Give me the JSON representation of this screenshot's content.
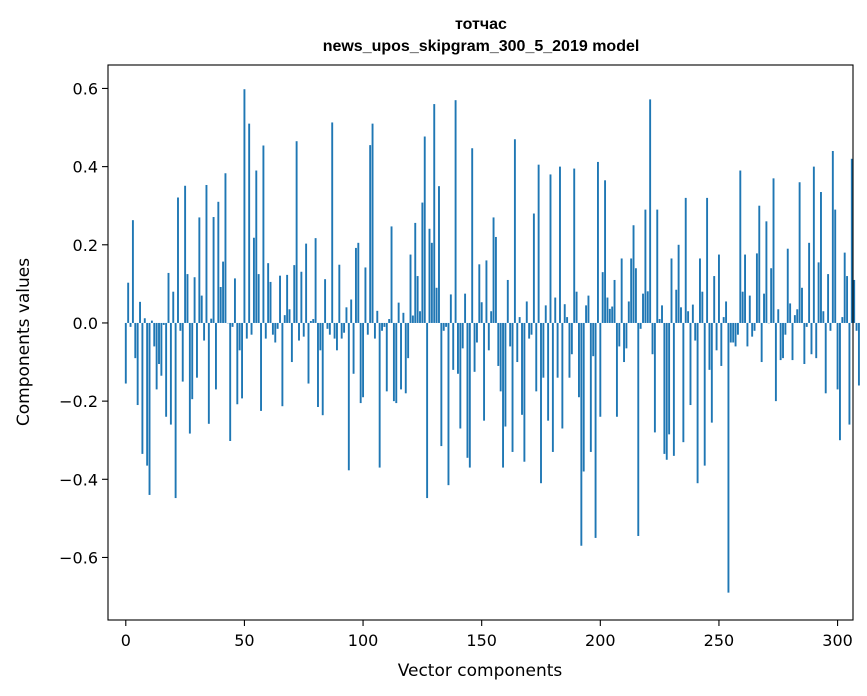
{
  "chart_data": {
    "type": "bar",
    "title_line1": "тотчас",
    "title_line2": "news_upos_skipgram_300_5_2019 model",
    "xlabel": "Vector components",
    "ylabel": "Components values",
    "xlim": [
      -7.5,
      306.5
    ],
    "ylim": [
      -0.76,
      0.66
    ],
    "xticks": [
      0,
      50,
      100,
      150,
      200,
      250,
      300
    ],
    "xtick_labels": [
      "0",
      "50",
      "100",
      "150",
      "200",
      "250",
      "300"
    ],
    "yticks": [
      0.6,
      0.4,
      0.2,
      0.0,
      -0.2,
      -0.4,
      -0.6
    ],
    "ytick_labels": [
      "0.6",
      "0.4",
      "0.2",
      "0.0",
      "−0.2",
      "−0.4",
      "−0.6"
    ],
    "bar_color": "#1f77b4",
    "values": [
      -0.155,
      0.103,
      -0.01,
      0.263,
      -0.09,
      -0.21,
      0.054,
      -0.335,
      0.012,
      -0.365,
      -0.44,
      0.006,
      -0.06,
      -0.17,
      -0.105,
      -0.135,
      -0.005,
      -0.24,
      0.128,
      -0.26,
      0.08,
      -0.448,
      0.321,
      -0.02,
      -0.15,
      0.351,
      0.125,
      -0.283,
      -0.195,
      0.117,
      -0.14,
      0.27,
      0.07,
      -0.045,
      0.353,
      -0.258,
      0.011,
      0.271,
      -0.17,
      0.31,
      0.092,
      0.157,
      0.383,
      0.0,
      -0.302,
      -0.01,
      0.114,
      -0.208,
      -0.07,
      -0.193,
      0.598,
      -0.04,
      0.51,
      -0.03,
      0.218,
      0.39,
      0.125,
      -0.225,
      0.454,
      -0.04,
      0.153,
      0.105,
      -0.03,
      -0.05,
      -0.015,
      0.121,
      -0.213,
      0.02,
      0.123,
      0.035,
      -0.1,
      0.148,
      0.465,
      -0.045,
      0.131,
      -0.035,
      0.203,
      -0.155,
      0.005,
      0.01,
      0.217,
      -0.215,
      -0.07,
      -0.236,
      0.112,
      -0.015,
      -0.03,
      0.513,
      -0.04,
      -0.07,
      0.149,
      -0.04,
      -0.025,
      0.04,
      -0.377,
      0.06,
      -0.13,
      0.192,
      0.205,
      -0.205,
      -0.19,
      0.142,
      -0.03,
      0.455,
      0.51,
      -0.04,
      0.031,
      -0.37,
      -0.02,
      -0.01,
      -0.175,
      0.01,
      0.247,
      -0.2,
      -0.205,
      0.052,
      -0.17,
      0.026,
      -0.18,
      -0.09,
      0.175,
      0.019,
      0.256,
      0.12,
      0.03,
      0.308,
      0.477,
      -0.448,
      0.241,
      0.205,
      0.56,
      0.09,
      0.35,
      -0.315,
      -0.02,
      -0.01,
      -0.415,
      0.073,
      -0.12,
      0.57,
      -0.13,
      -0.27,
      -0.065,
      0.075,
      -0.345,
      -0.37,
      0.447,
      -0.125,
      -0.05,
      0.15,
      0.053,
      -0.25,
      0.16,
      -0.07,
      0.03,
      0.27,
      0.22,
      -0.11,
      -0.175,
      -0.37,
      -0.265,
      0.11,
      -0.06,
      -0.33,
      0.47,
      -0.1,
      0.015,
      -0.235,
      -0.355,
      0.055,
      -0.04,
      -0.03,
      0.28,
      -0.175,
      0.405,
      -0.41,
      -0.14,
      0.045,
      -0.25,
      0.38,
      -0.33,
      0.065,
      -0.14,
      0.4,
      -0.27,
      0.048,
      0.015,
      -0.14,
      -0.08,
      0.395,
      0.08,
      -0.19,
      -0.57,
      -0.38,
      0.045,
      0.07,
      -0.33,
      -0.085,
      -0.55,
      0.412,
      -0.24,
      0.13,
      0.365,
      0.065,
      0.036,
      0.042,
      0.11,
      -0.24,
      -0.06,
      0.165,
      -0.1,
      -0.065,
      0.055,
      0.165,
      0.25,
      0.14,
      -0.545,
      -0.015,
      0.075,
      0.29,
      0.081,
      0.572,
      -0.08,
      -0.28,
      0.29,
      0.01,
      0.045,
      -0.335,
      -0.35,
      -0.285,
      0.165,
      -0.34,
      0.085,
      0.2,
      0.04,
      -0.305,
      0.32,
      0.03,
      -0.21,
      0.047,
      -0.045,
      -0.41,
      0.165,
      0.08,
      -0.365,
      0.32,
      -0.12,
      -0.255,
      0.12,
      -0.07,
      0.175,
      -0.11,
      0.015,
      0.055,
      -0.69,
      -0.05,
      -0.05,
      -0.06,
      -0.03,
      0.39,
      0.08,
      0.175,
      -0.06,
      0.07,
      -0.035,
      -0.02,
      0.178,
      0.3,
      -0.1,
      0.075,
      0.26,
      0.0,
      0.14,
      0.37,
      -0.2,
      0.035,
      -0.095,
      -0.09,
      -0.03,
      0.19,
      0.05,
      -0.095,
      0.02,
      0.035,
      0.36,
      0.09,
      -0.105,
      -0.01,
      0.205,
      -0.08,
      0.4,
      -0.09,
      0.155,
      0.335,
      0.03,
      -0.18,
      0.125,
      -0.02,
      0.44,
      0.29,
      -0.17,
      -0.3,
      0.015,
      0.18,
      0.12,
      -0.26,
      0.42,
      0.11,
      -0.02,
      -0.16
    ]
  }
}
